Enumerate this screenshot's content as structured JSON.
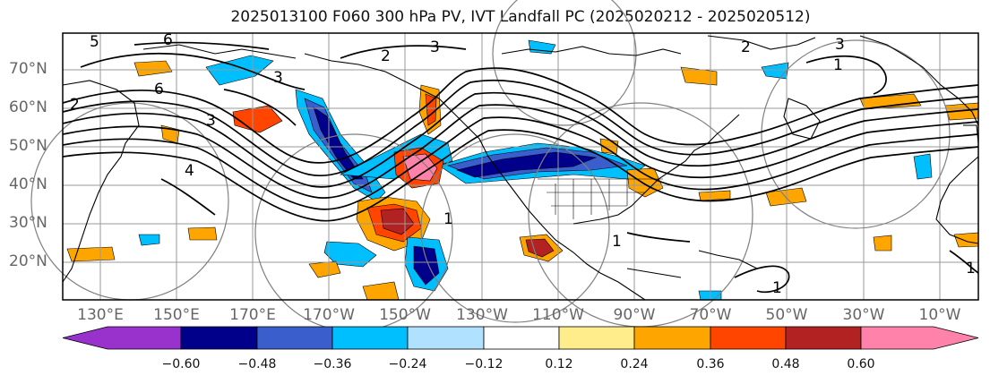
{
  "title": "2025013100 F060 300 hPa PV, IVT Landfall PC (2025020212 - 2025020512)",
  "lat_ticks": [
    "70°N",
    "60°N",
    "50°N",
    "40°N",
    "30°N",
    "20°N"
  ],
  "lon_ticks": [
    "130°E",
    "150°E",
    "170°E",
    "170°W",
    "150°W",
    "130°W",
    "110°W",
    "90°W",
    "70°W",
    "50°W",
    "30°W",
    "10°W"
  ],
  "colorbar": {
    "labels": [
      "−0.60",
      "−0.48",
      "−0.36",
      "−0.24",
      "−0.12",
      "0.12",
      "0.24",
      "0.36",
      "0.48",
      "0.60"
    ],
    "colors": [
      "#9932cc",
      "#00008b",
      "#3a5fcd",
      "#00bfff",
      "#b0e2ff",
      "#ffffff",
      "#ffec8b",
      "#ffa500",
      "#ff4500",
      "#b22222",
      "#ff82ab"
    ]
  },
  "contour_labels": [
    "5",
    "6",
    "3",
    "2",
    "6",
    "3",
    "2",
    "3",
    "4",
    "1",
    "1",
    "1",
    "1",
    "1",
    "3",
    "2"
  ]
}
